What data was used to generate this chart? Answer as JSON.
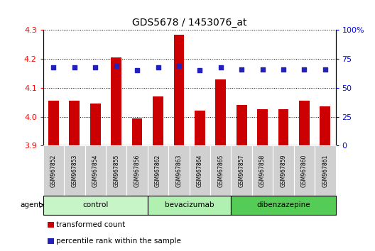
{
  "title": "GDS5678 / 1453076_at",
  "samples": [
    "GSM967852",
    "GSM967853",
    "GSM967854",
    "GSM967855",
    "GSM967856",
    "GSM967862",
    "GSM967863",
    "GSM967864",
    "GSM967865",
    "GSM967857",
    "GSM967858",
    "GSM967859",
    "GSM967860",
    "GSM967861"
  ],
  "transformed_count": [
    4.055,
    4.055,
    4.045,
    4.205,
    3.995,
    4.07,
    4.285,
    4.02,
    4.13,
    4.04,
    4.025,
    4.025,
    4.055,
    4.035
  ],
  "percentile_rank": [
    68,
    68,
    68,
    69,
    65,
    68,
    69,
    65,
    68,
    66,
    66,
    66,
    66,
    66
  ],
  "groups": [
    {
      "label": "control",
      "start": 0,
      "end": 5,
      "color": "#c8f5c8"
    },
    {
      "label": "bevacizumab",
      "start": 5,
      "end": 9,
      "color": "#b0f0b0"
    },
    {
      "label": "dibenzazepine",
      "start": 9,
      "end": 14,
      "color": "#55cc55"
    }
  ],
  "ylim_left": [
    3.9,
    4.3
  ],
  "ylim_right": [
    0,
    100
  ],
  "yticks_left": [
    3.9,
    4.0,
    4.1,
    4.2,
    4.3
  ],
  "yticks_right": [
    0,
    25,
    50,
    75,
    100
  ],
  "bar_color": "#cc0000",
  "dot_color": "#2222bb",
  "bar_width": 0.5,
  "tick_bg": "#d8d8d8",
  "legend_items": [
    {
      "label": "transformed count",
      "color": "#cc0000"
    },
    {
      "label": "percentile rank within the sample",
      "color": "#2222bb"
    }
  ]
}
